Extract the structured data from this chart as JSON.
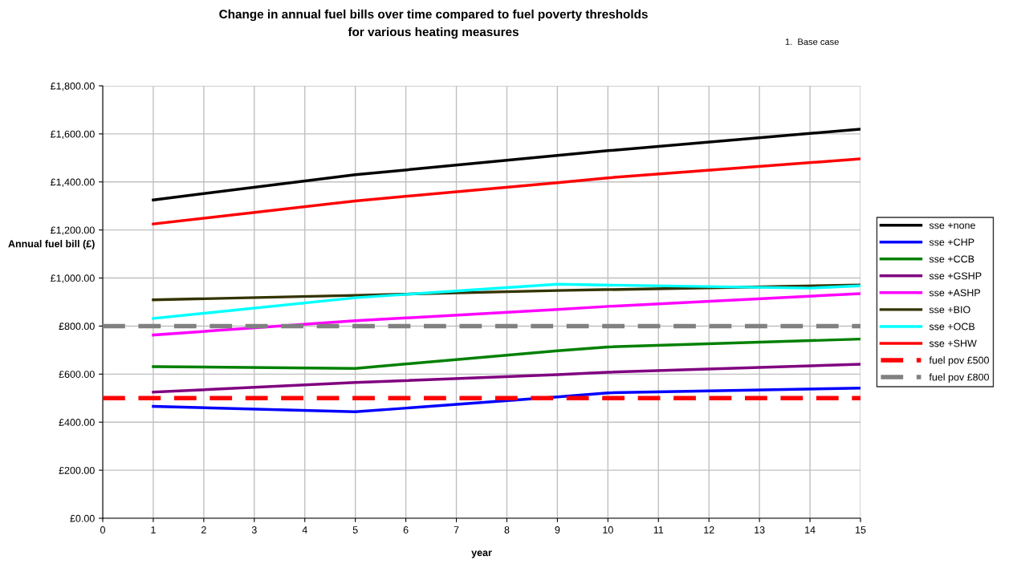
{
  "chart_data": {
    "type": "line",
    "title": "Change in annual fuel bills over time compared to fuel poverty thresholds\nfor various heating measures",
    "xlabel": "year",
    "ylabel": "Annual fuel bill (£)",
    "annotations": [
      "1.  Base case"
    ],
    "xlim": [
      0,
      15
    ],
    "xticks": [
      0,
      1,
      2,
      3,
      4,
      5,
      6,
      7,
      8,
      9,
      10,
      11,
      12,
      13,
      14,
      15
    ],
    "ylim": [
      0,
      1800
    ],
    "yticks": [
      {
        "value": 0,
        "label": "£0.00"
      },
      {
        "value": 200,
        "label": "£200.00"
      },
      {
        "value": 400,
        "label": "£400.00"
      },
      {
        "value": 600,
        "label": "£600.00"
      },
      {
        "value": 800,
        "label": "£800.00"
      },
      {
        "value": 1000,
        "label": "£1,000.00"
      },
      {
        "value": 1200,
        "label": "£1,200.00"
      },
      {
        "value": 1400,
        "label": "£1,400.00"
      },
      {
        "value": 1600,
        "label": "£1,600.00"
      },
      {
        "value": 1800,
        "label": "£1,800.00"
      }
    ],
    "grid": true,
    "legend": "right",
    "marker": "none",
    "series": [
      {
        "name": "sse +none",
        "color": "#000000",
        "x": [
          1,
          5,
          9,
          10,
          15
        ],
        "values": [
          1325,
          1430,
          1510,
          1530,
          1620
        ]
      },
      {
        "name": "sse +CHP",
        "color": "#0000ff",
        "x": [
          1,
          5,
          9,
          10,
          15
        ],
        "values": [
          466,
          443,
          505,
          522,
          542
        ]
      },
      {
        "name": "sse +CCB",
        "color": "#008000",
        "x": [
          1,
          5,
          9,
          10,
          15
        ],
        "values": [
          631,
          624,
          697,
          713,
          746
        ]
      },
      {
        "name": "sse +GSHP",
        "color": "#800080",
        "x": [
          1,
          5,
          9,
          10,
          15
        ],
        "values": [
          525,
          565,
          598,
          608,
          641
        ]
      },
      {
        "name": "sse +ASHP",
        "color": "#ff00ff",
        "x": [
          1,
          5,
          9,
          10,
          15
        ],
        "values": [
          763,
          822,
          869,
          882,
          935
        ]
      },
      {
        "name": "sse +BIO",
        "color": "#333300",
        "x": [
          1,
          5,
          9,
          15
        ],
        "values": [
          909,
          928,
          948,
          971
        ]
      },
      {
        "name": "sse +OCB",
        "color": "#00ffff",
        "x": [
          1,
          5,
          9,
          14,
          15
        ],
        "values": [
          832,
          918,
          974,
          958,
          968
        ]
      },
      {
        "name": "sse +SHW",
        "color": "#ff0000",
        "x": [
          1,
          5,
          9,
          10,
          15
        ],
        "values": [
          1225,
          1321,
          1397,
          1417,
          1496
        ]
      },
      {
        "name": "fuel pov £500",
        "color": "#ff0000",
        "line_style": "dashed",
        "x": [
          0,
          15
        ],
        "values": [
          500,
          500
        ]
      },
      {
        "name": "fuel pov £800",
        "color": "#808080",
        "line_style": "dashed",
        "x": [
          0,
          15
        ],
        "values": [
          800,
          800
        ]
      }
    ]
  }
}
